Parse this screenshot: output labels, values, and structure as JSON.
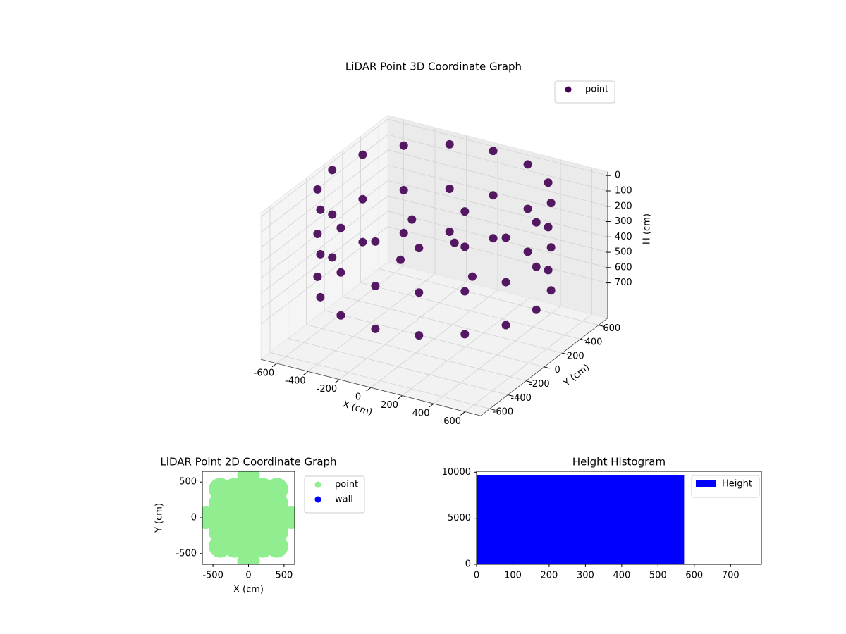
{
  "chart_data": [
    {
      "type": "scatter3d",
      "title": "LiDAR Point 3D Coordinate Graph",
      "xlabel": "X (cm)",
      "ylabel": "Y (cm)",
      "zlabel": "H (cm)",
      "xlim": [
        -700,
        700
      ],
      "ylim": [
        -700,
        700
      ],
      "zlim": [
        930,
        -25
      ],
      "xticks": [
        -600,
        -400,
        -200,
        0,
        200,
        400,
        600
      ],
      "yticks": [
        -600,
        -400,
        -200,
        0,
        200,
        400,
        600
      ],
      "zticks": [
        0,
        100,
        200,
        300,
        400,
        500,
        600,
        700
      ],
      "grid": true,
      "legend": "upper right",
      "series": [
        {
          "name": "point",
          "color": "#440154",
          "x": [
            650,
            600,
            460,
            249,
            0,
            -249,
            -460,
            -600,
            -650,
            -600,
            -460,
            -249,
            0,
            249,
            460,
            600,
            650,
            600,
            460,
            249,
            0,
            -249,
            -460,
            -600,
            -650,
            -600,
            -460,
            -249,
            0,
            249,
            460,
            600,
            650,
            600,
            460,
            249,
            0,
            -249,
            -460,
            -600,
            -650,
            -600,
            -460,
            -249,
            0,
            249,
            460,
            600,
            100,
            -200,
            300,
            -100,
            50
          ],
          "y": [
            0,
            249,
            460,
            600,
            650,
            600,
            460,
            249,
            0,
            -249,
            -460,
            -600,
            -650,
            -600,
            -460,
            -249,
            0,
            249,
            460,
            600,
            650,
            600,
            460,
            249,
            0,
            -249,
            -460,
            -600,
            -650,
            -600,
            -460,
            -249,
            0,
            249,
            460,
            600,
            650,
            600,
            460,
            249,
            0,
            -249,
            -460,
            -600,
            -650,
            -600,
            -460,
            -249,
            50,
            100,
            -100,
            -200,
            250
          ],
          "z": [
            0,
            0,
            0,
            0,
            0,
            0,
            0,
            0,
            0,
            0,
            0,
            0,
            0,
            0,
            0,
            0,
            290,
            290,
            290,
            290,
            290,
            290,
            290,
            290,
            290,
            290,
            290,
            290,
            290,
            290,
            290,
            290,
            570,
            570,
            570,
            570,
            570,
            570,
            570,
            570,
            570,
            570,
            570,
            570,
            570,
            570,
            570,
            570,
            300,
            250,
            400,
            350,
            200
          ]
        }
      ]
    },
    {
      "type": "scatter",
      "title": "LiDAR Point 2D Coordinate Graph",
      "xlabel": "X (cm)",
      "ylabel": "Y (cm)",
      "xlim": [
        -650,
        650
      ],
      "ylim": [
        -650,
        650
      ],
      "xticks": [
        -500,
        0,
        500
      ],
      "yticks": [
        -500,
        0,
        500
      ],
      "legend": "outside upper right",
      "series": [
        {
          "name": "point",
          "color": "#90ee90",
          "x": [
            -600,
            -400,
            -400,
            -400,
            -400,
            -400,
            -200,
            -200,
            -200,
            -200,
            -200,
            0,
            0,
            0,
            0,
            0,
            0,
            0,
            200,
            200,
            200,
            200,
            200,
            400,
            400,
            400,
            400,
            400,
            600
          ],
          "y": [
            0,
            -400,
            -200,
            0,
            200,
            400,
            -400,
            -200,
            0,
            200,
            400,
            -600,
            -400,
            -200,
            0,
            200,
            400,
            600,
            -400,
            -200,
            0,
            200,
            400,
            -400,
            -200,
            0,
            200,
            400,
            0
          ]
        },
        {
          "name": "wall",
          "color": "#0000ff",
          "x": [],
          "y": []
        }
      ]
    },
    {
      "type": "histogram",
      "title": "Height Histogram",
      "name": "Height",
      "color": "#0000ff",
      "bins": [
        0,
        572
      ],
      "counts": [
        9700
      ],
      "xlim": [
        0,
        785
      ],
      "ylim": [
        0,
        10100
      ],
      "xticks": [
        0,
        100,
        200,
        300,
        400,
        500,
        600,
        700
      ],
      "yticks": [
        0,
        5000,
        10000
      ],
      "legend": "upper right"
    }
  ]
}
